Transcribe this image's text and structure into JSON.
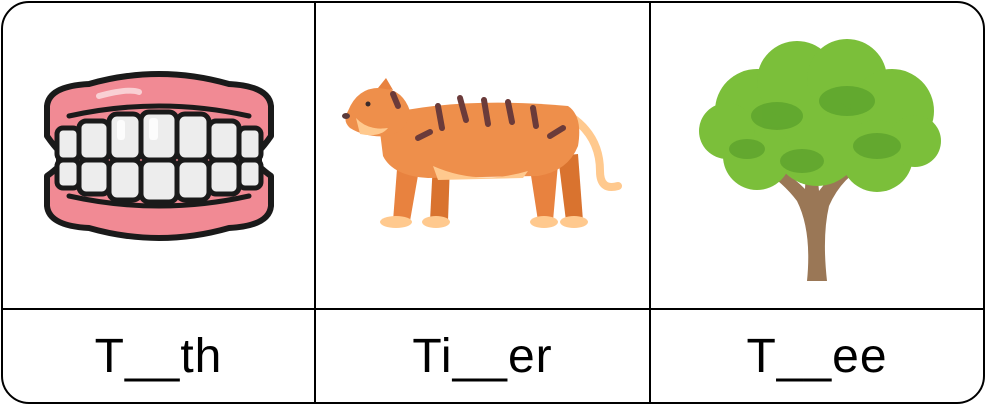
{
  "cards": [
    {
      "icon": "teeth-icon",
      "word": "T__th"
    },
    {
      "icon": "tiger-icon",
      "word": "Ti__er"
    },
    {
      "icon": "tree-icon",
      "word": "T__ee"
    }
  ],
  "colors": {
    "gum": "#F18A94",
    "tooth": "#FFFFFF",
    "tiger_body": "#EE8F4B",
    "tiger_belly": "#FFC98E",
    "tiger_stripe": "#6B3B3A",
    "tree_leaves": "#7BBF3A",
    "tree_trunk": "#9A7756"
  }
}
